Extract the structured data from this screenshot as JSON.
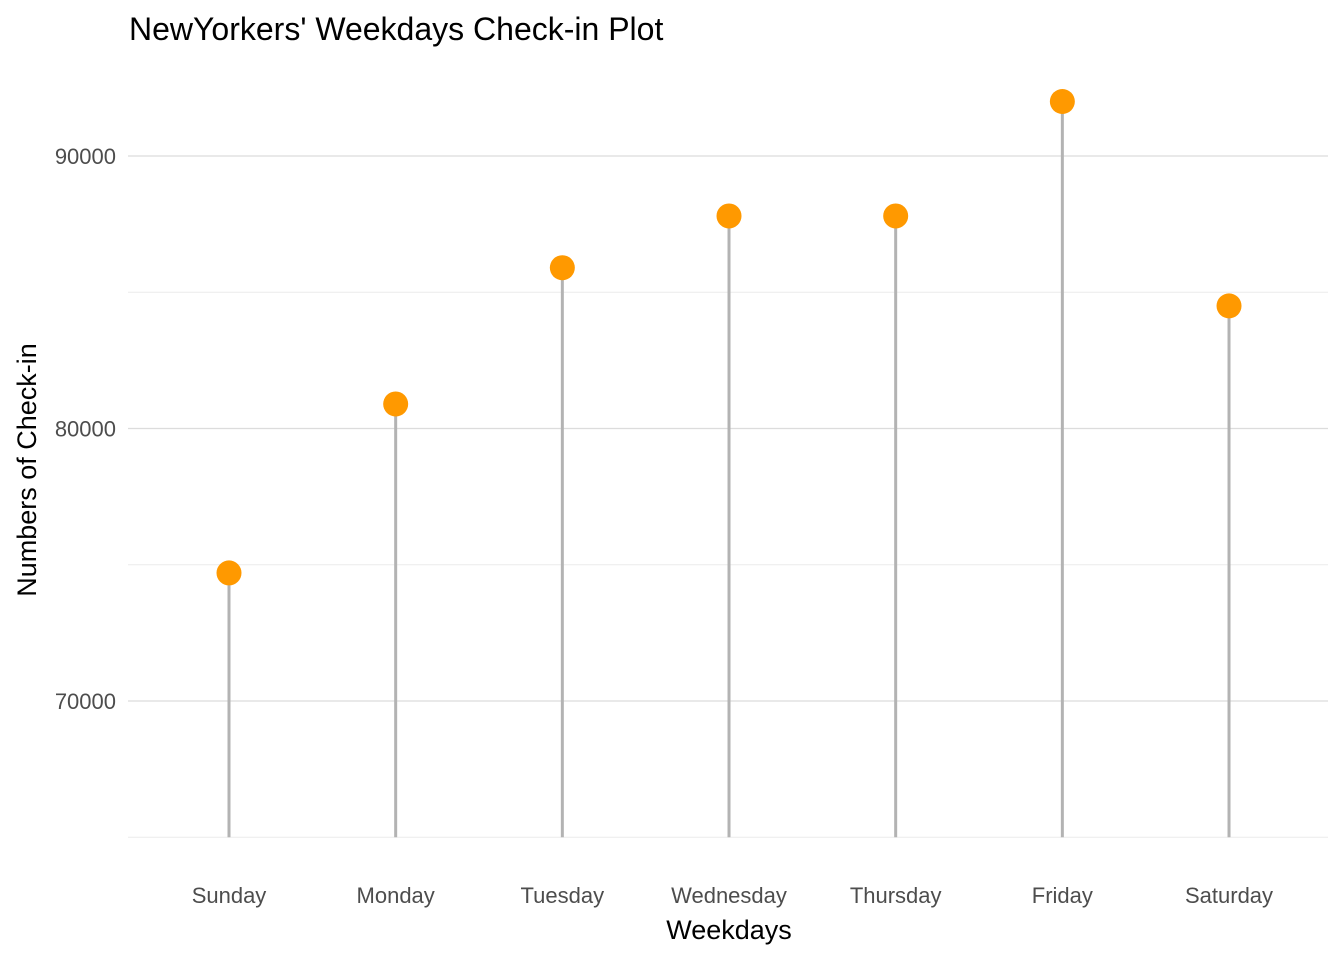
{
  "chart_data": {
    "type": "lollipop",
    "title": "NewYorkers' Weekdays Check-in Plot",
    "xlabel": "Weekdays",
    "ylabel": "Numbers of Check-in",
    "categories": [
      "Sunday",
      "Monday",
      "Tuesday",
      "Wednesday",
      "Thursday",
      "Friday",
      "Saturday"
    ],
    "values": [
      74700,
      80900,
      85900,
      87800,
      87800,
      92000,
      84500
    ],
    "yticks": [
      "70000",
      "80000",
      "90000"
    ],
    "ylim": [
      65000,
      93000
    ],
    "grid": true,
    "legend": "none",
    "colors": {
      "point": "#ff9900",
      "stem": "#b3b3b3",
      "grid_major": "#dcdcdc",
      "grid_minor": "#ececec"
    }
  }
}
